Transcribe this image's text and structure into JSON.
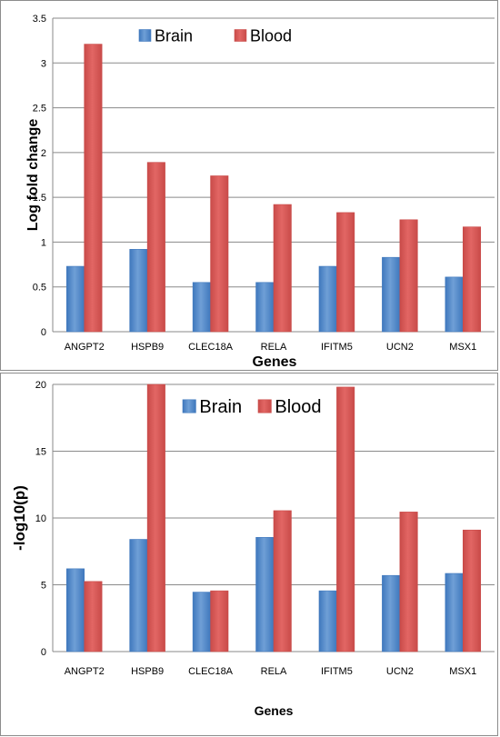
{
  "chart_data": [
    {
      "type": "bar",
      "categories": [
        "ANGPT2",
        "HSPB9",
        "CLEC18A",
        "RELA",
        "IFITM5",
        "UCN2",
        "MSX1"
      ],
      "series": [
        {
          "name": "Brain",
          "values": [
            0.73,
            0.92,
            0.55,
            0.55,
            0.73,
            0.83,
            0.61
          ],
          "color": "#6f9fd6"
        },
        {
          "name": "Blood",
          "values": [
            3.21,
            1.89,
            1.74,
            1.42,
            1.33,
            1.25,
            1.17
          ],
          "color": "#e26664"
        }
      ],
      "title": "",
      "xlabel": "Genes",
      "ylabel": "Log fold change",
      "ylim": [
        0,
        3.5
      ],
      "yticks": [
        "0",
        "0.5",
        "1",
        "1.5",
        "2",
        "2.5",
        "3",
        "3.5"
      ],
      "grid": true,
      "legend": "top"
    },
    {
      "type": "bar",
      "categories": [
        "ANGPT2",
        "HSPB9",
        "CLEC18A",
        "RELA",
        "IFITM5",
        "UCN2",
        "MSX1"
      ],
      "series": [
        {
          "name": "Brain",
          "values": [
            6.2,
            8.4,
            4.45,
            8.55,
            4.55,
            5.7,
            5.85
          ],
          "color": "#6f9fd6"
        },
        {
          "name": "Blood",
          "values": [
            5.25,
            20,
            4.55,
            10.55,
            19.8,
            10.45,
            9.1
          ],
          "color": "#e26664"
        }
      ],
      "title": "",
      "xlabel": "Genes",
      "ylabel": "-log10(p)",
      "ylim": [
        0,
        20
      ],
      "yticks": [
        "0",
        "5",
        "10",
        "15",
        "20"
      ],
      "grid": true,
      "legend": "top"
    }
  ]
}
